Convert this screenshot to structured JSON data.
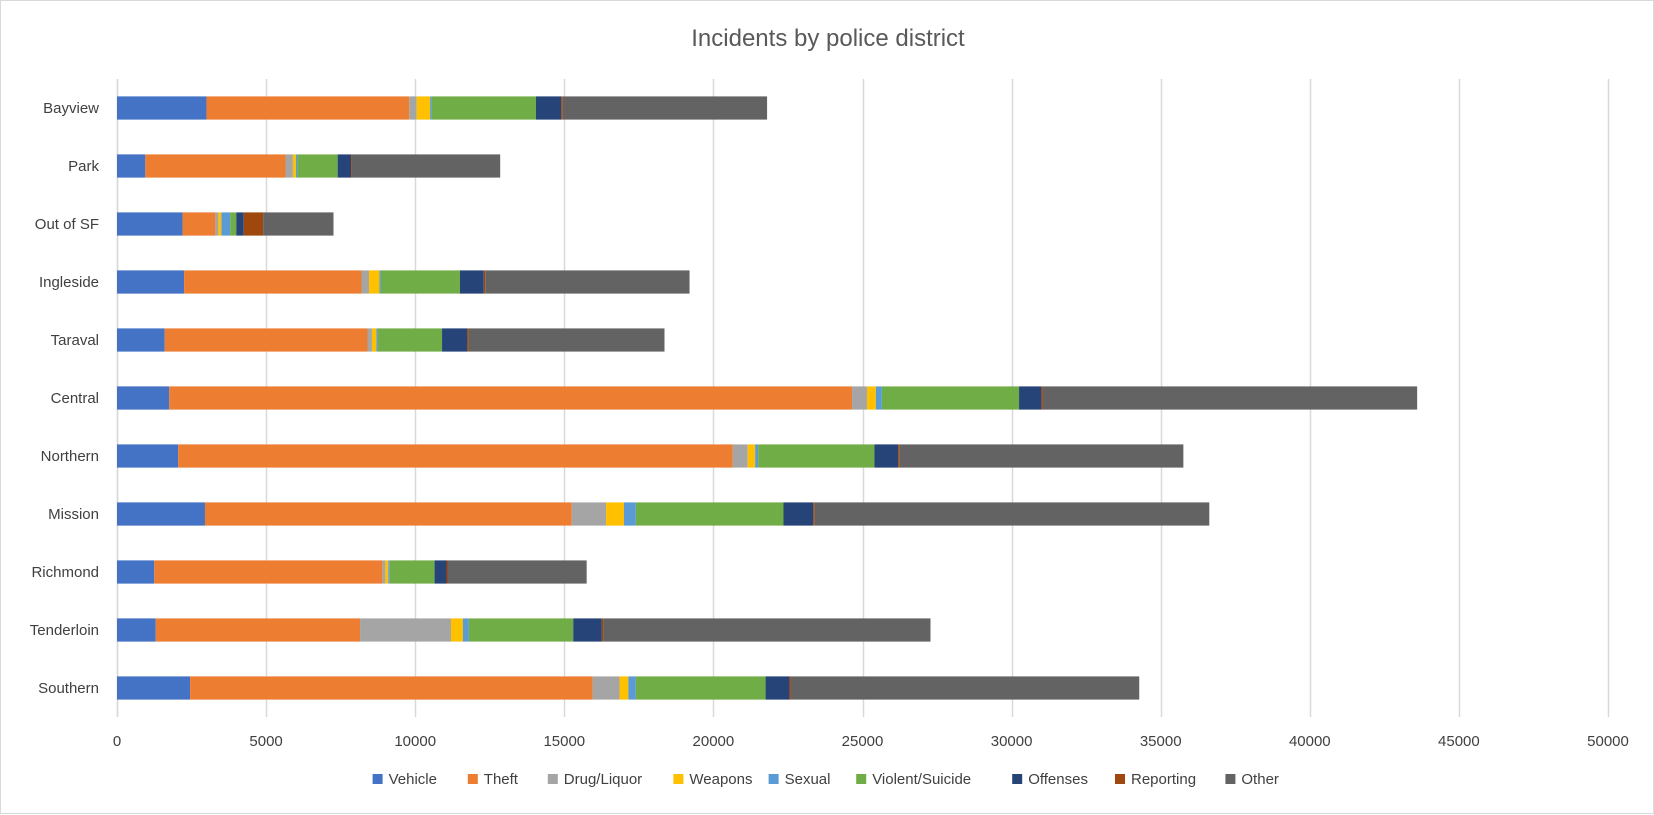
{
  "chart_data": {
    "type": "bar",
    "orientation": "horizontal",
    "stacked": true,
    "title": "Incidents by police district",
    "xlabel": "",
    "ylabel": "",
    "xlim": [
      0,
      50000
    ],
    "x_ticks": [
      0,
      5000,
      10000,
      15000,
      20000,
      25000,
      30000,
      35000,
      40000,
      45000,
      50000
    ],
    "grid": "vertical",
    "legend_position": "bottom",
    "categories": [
      "Bayview",
      "Park",
      "Out of SF",
      "Ingleside",
      "Taraval",
      "Central",
      "Northern",
      "Mission",
      "Richmond",
      "Tenderloin",
      "Southern"
    ],
    "series": [
      {
        "name": "Vehicle",
        "color": "#4472C4",
        "values": [
          3000,
          950,
          2200,
          2250,
          1600,
          1750,
          2050,
          2950,
          1250,
          1300,
          2450
        ]
      },
      {
        "name": "Theft",
        "color": "#ED7D31",
        "values": [
          6800,
          4700,
          1100,
          5950,
          6800,
          22900,
          18600,
          12300,
          7650,
          6850,
          13500
        ]
      },
      {
        "name": "Drug/Liquor",
        "color": "#A5A5A5",
        "values": [
          250,
          250,
          100,
          250,
          150,
          500,
          500,
          1150,
          100,
          3050,
          900
        ]
      },
      {
        "name": "Weapons",
        "color": "#FFC000",
        "values": [
          450,
          100,
          100,
          350,
          150,
          300,
          250,
          600,
          100,
          400,
          300
        ]
      },
      {
        "name": "Sexual",
        "color": "#5B9BD5",
        "values": [
          50,
          50,
          300,
          50,
          50,
          200,
          100,
          400,
          50,
          200,
          250
        ]
      },
      {
        "name": "Violent/Suicide",
        "color": "#70AD47",
        "values": [
          3500,
          1350,
          200,
          2650,
          2150,
          4600,
          3900,
          4950,
          1500,
          3500,
          4350
        ]
      },
      {
        "name": "Offenses",
        "color": "#264478",
        "values": [
          850,
          450,
          250,
          800,
          850,
          750,
          800,
          1000,
          400,
          950,
          800
        ]
      },
      {
        "name": "Reporting",
        "color": "#9E480E",
        "values": [
          50,
          30,
          650,
          50,
          50,
          50,
          50,
          50,
          50,
          50,
          50
        ]
      },
      {
        "name": "Other",
        "color": "#636363",
        "values": [
          6850,
          4970,
          2360,
          6850,
          6560,
          12550,
          9510,
          13230,
          4650,
          10980,
          11680
        ]
      }
    ]
  }
}
